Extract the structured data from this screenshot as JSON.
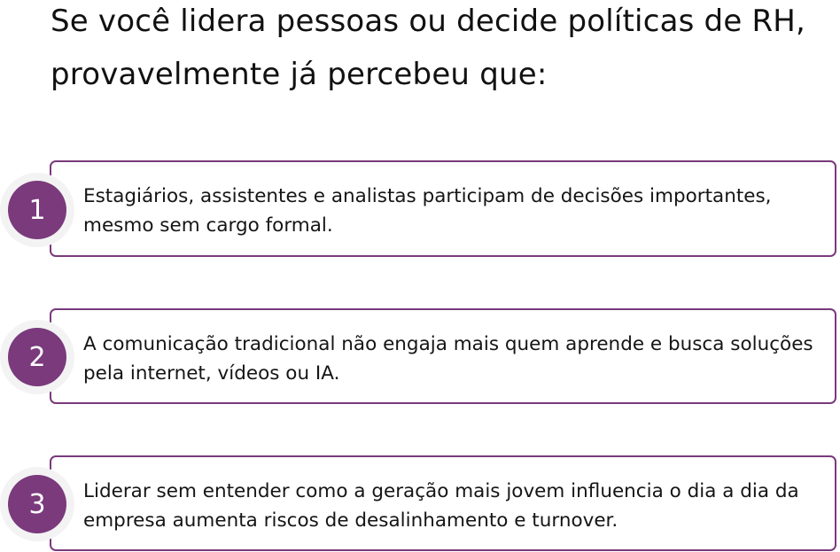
{
  "title": "Se você lidera pessoas ou decide políticas de RH, provavelmente já percebeu que:",
  "accent_color": "#7a3a7c",
  "items": [
    {
      "number": "1",
      "text": "Estagiários, assistentes e analistas participam de decisões importantes, mesmo sem cargo formal."
    },
    {
      "number": "2",
      "text": "A comunicação tradicional não engaja mais quem aprende e busca soluções pela internet, vídeos ou IA."
    },
    {
      "number": "3",
      "text": "Liderar sem entender como a geração mais jovem influencia o dia a dia da empresa aumenta riscos de desalinhamento e turnover."
    }
  ]
}
